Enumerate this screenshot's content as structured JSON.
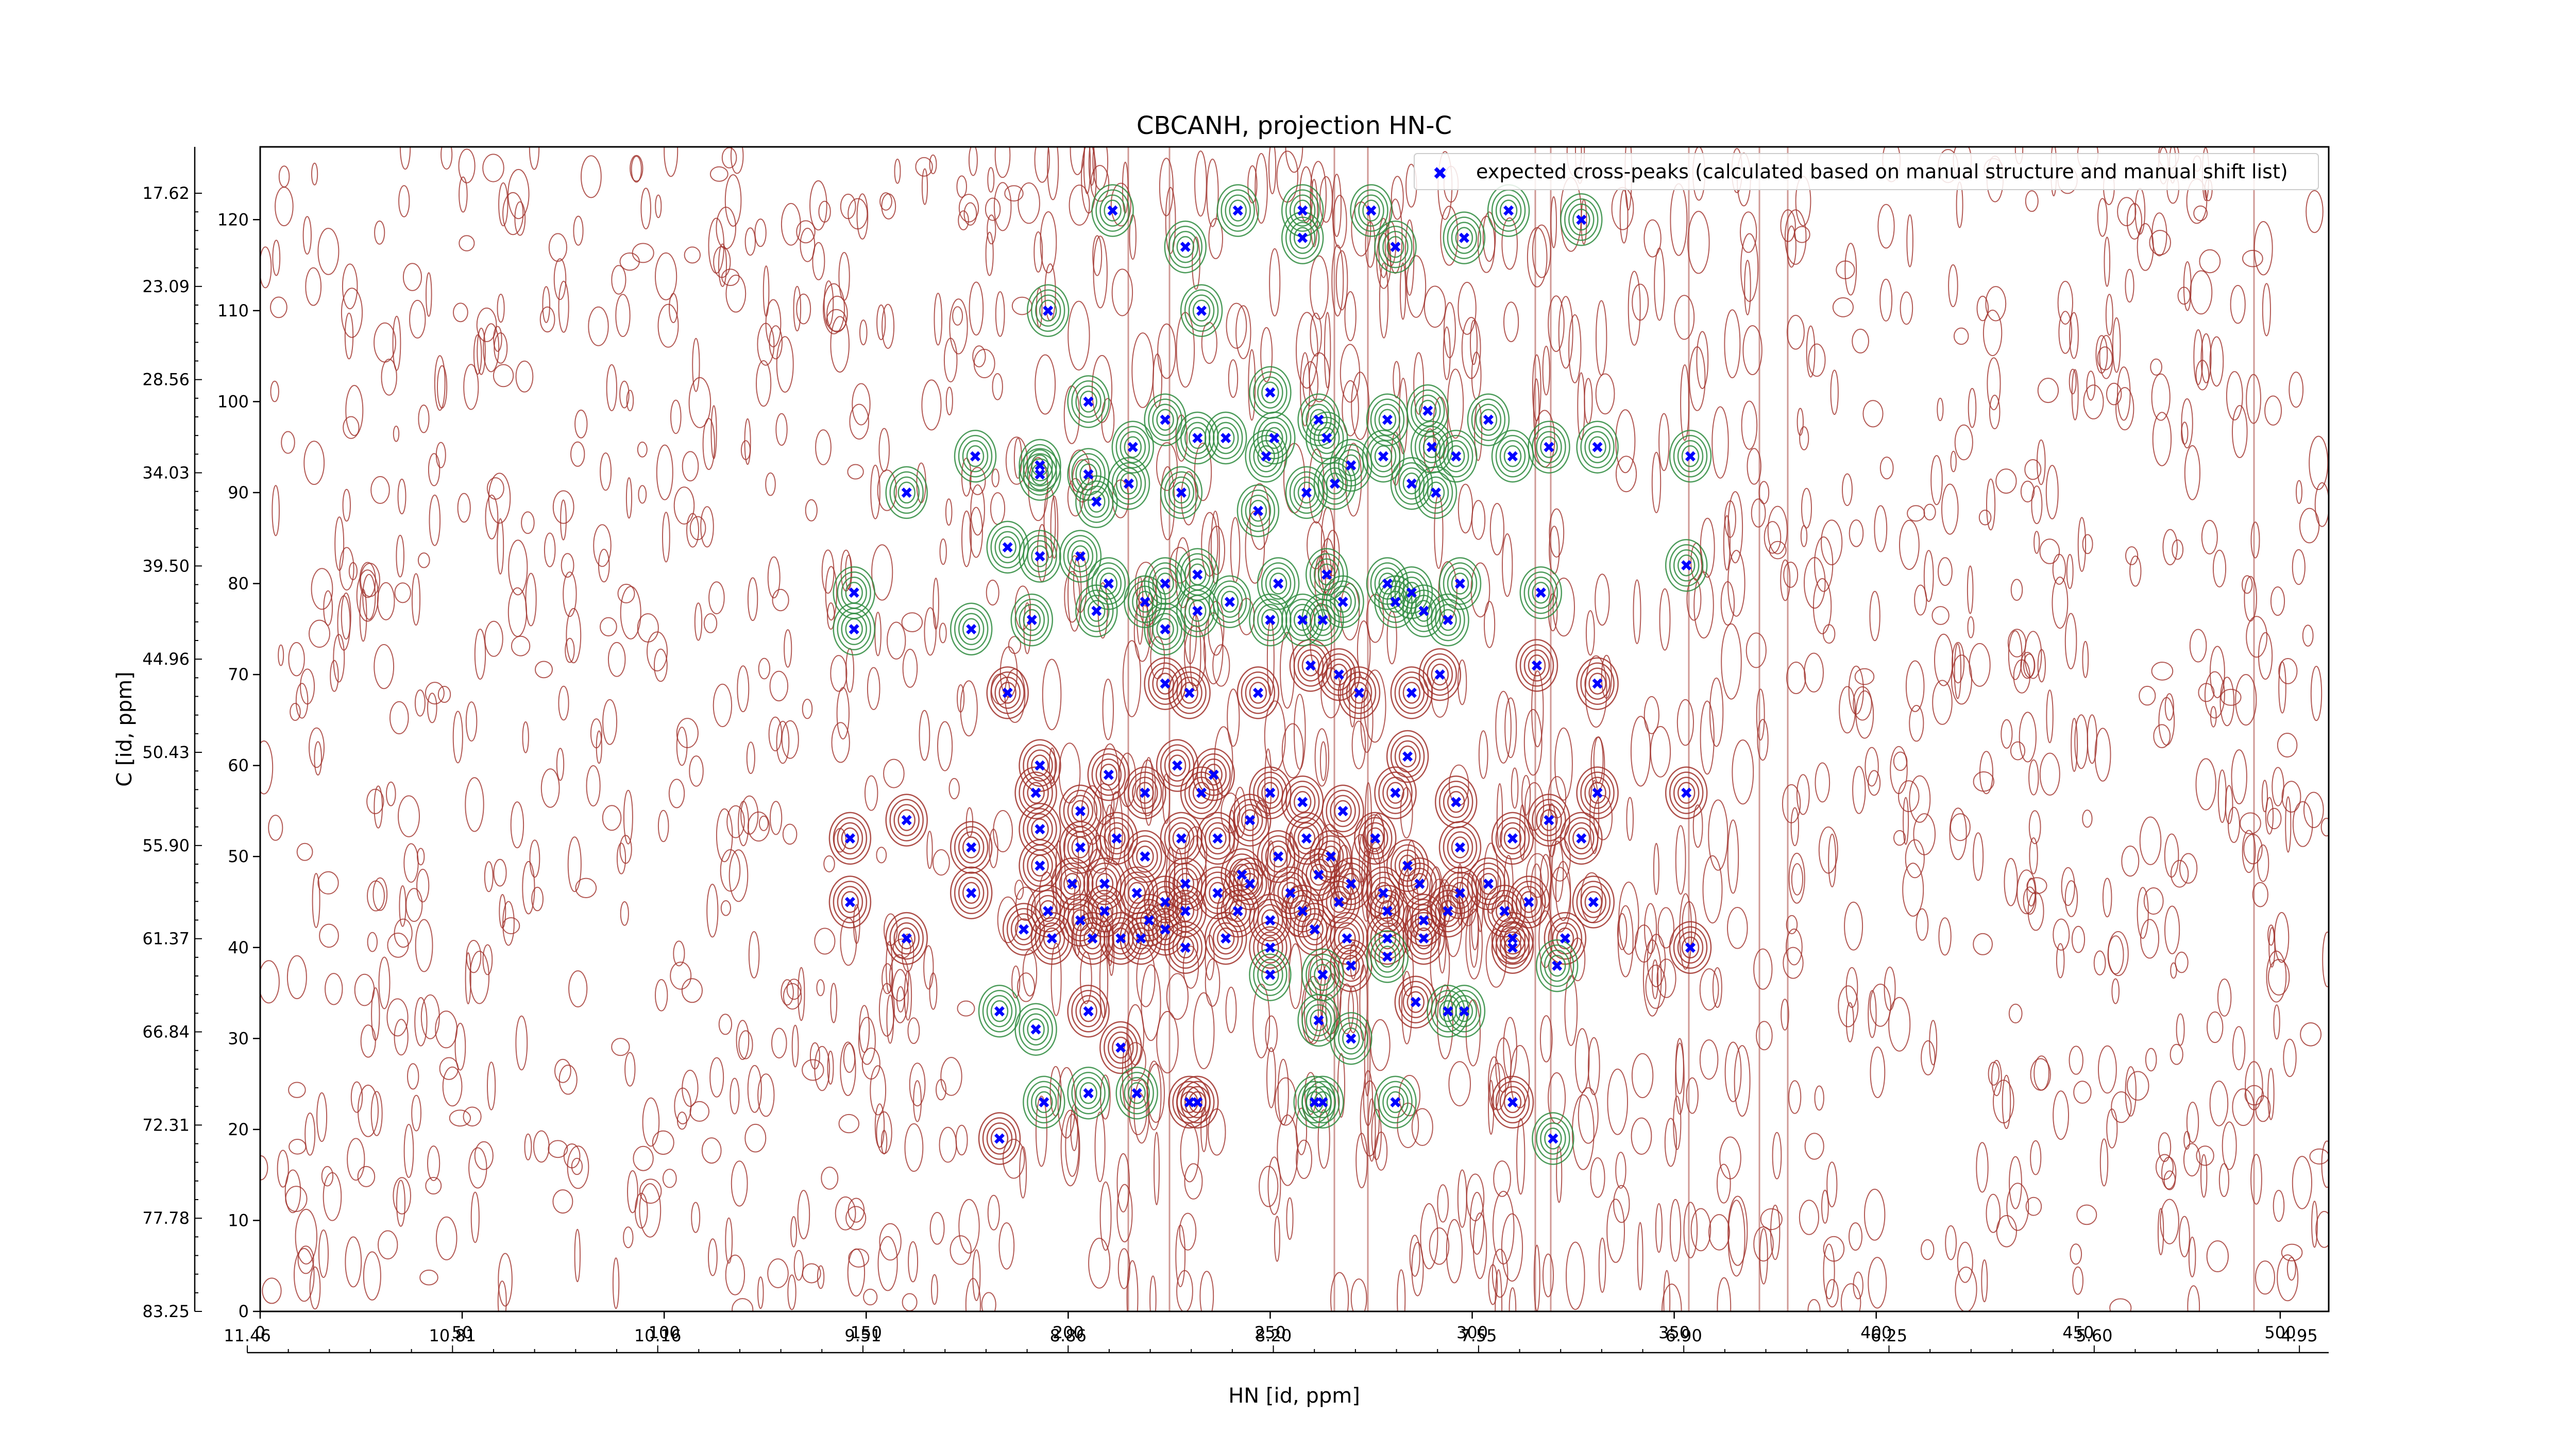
{
  "chart_data": {
    "type": "scatter",
    "title": "CBCANH, projection HN-C",
    "xlabel": "HN [id, ppm]",
    "ylabel": "C [id, ppm]",
    "xlim": [
      0,
      512
    ],
    "ylim": [
      0,
      128
    ],
    "x_ticks": [
      0,
      50,
      100,
      150,
      200,
      250,
      300,
      350,
      400,
      450,
      500
    ],
    "y_ticks": [
      0,
      10,
      20,
      30,
      40,
      50,
      60,
      70,
      80,
      90,
      100,
      110,
      120
    ],
    "x_ppm_ticks": [
      "11.46",
      "10.81",
      "10.16",
      "9.51",
      "8.86",
      "8.20",
      "7.55",
      "6.90",
      "6.25",
      "5.60",
      "4.95"
    ],
    "y_ppm_ticks": [
      "83.25",
      "77.78",
      "72.31",
      "66.84",
      "61.37",
      "55.90",
      "50.43",
      "44.96",
      "39.50",
      "34.03",
      "28.56",
      "23.09",
      "17.62"
    ],
    "legend": {
      "position": "top-right",
      "label": "expected cross-peaks (calculated based on manual structure and manual shift list)"
    },
    "colors": {
      "marker": "#0000ff",
      "positive_contour": "#a0312a",
      "negative_contour": "#2e8b3e",
      "axis": "#000000"
    },
    "series": [
      {
        "name": "expected cross-peaks (calculated based on manual structure and manual shift list)",
        "marker": "x",
        "points": [
          [
            211,
            121
          ],
          [
            229,
            117
          ],
          [
            242,
            121
          ],
          [
            258,
            121
          ],
          [
            258,
            118
          ],
          [
            275,
            121
          ],
          [
            281,
            117
          ],
          [
            298,
            118
          ],
          [
            309,
            121
          ],
          [
            327,
            120
          ],
          [
            195,
            110
          ],
          [
            233,
            110
          ],
          [
            205,
            100
          ],
          [
            224,
            98
          ],
          [
            250,
            101
          ],
          [
            262,
            98
          ],
          [
            279,
            98
          ],
          [
            289,
            99
          ],
          [
            304,
            98
          ],
          [
            177,
            94
          ],
          [
            193,
            93
          ],
          [
            216,
            95
          ],
          [
            232,
            96
          ],
          [
            239,
            96
          ],
          [
            249,
            94
          ],
          [
            251,
            96
          ],
          [
            264,
            96
          ],
          [
            270,
            93
          ],
          [
            278,
            94
          ],
          [
            290,
            95
          ],
          [
            296,
            94
          ],
          [
            310,
            94
          ],
          [
            319,
            95
          ],
          [
            331,
            95
          ],
          [
            354,
            94
          ],
          [
            160,
            90
          ],
          [
            193,
            92
          ],
          [
            205,
            92
          ],
          [
            207,
            89
          ],
          [
            215,
            91
          ],
          [
            228,
            90
          ],
          [
            247,
            88
          ],
          [
            259,
            90
          ],
          [
            266,
            91
          ],
          [
            285,
            91
          ],
          [
            291,
            90
          ],
          [
            193,
            83
          ],
          [
            203,
            83
          ],
          [
            210,
            80
          ],
          [
            224,
            80
          ],
          [
            232,
            81
          ],
          [
            252,
            80
          ],
          [
            264,
            81
          ],
          [
            279,
            80
          ],
          [
            285,
            79
          ],
          [
            297,
            80
          ],
          [
            317,
            79
          ],
          [
            147,
            79
          ],
          [
            147,
            75
          ],
          [
            176,
            75
          ],
          [
            191,
            76
          ],
          [
            207,
            77
          ],
          [
            219,
            78
          ],
          [
            224,
            75
          ],
          [
            232,
            77
          ],
          [
            240,
            78
          ],
          [
            250,
            76
          ],
          [
            258,
            76
          ],
          [
            263,
            76
          ],
          [
            268,
            78
          ],
          [
            281,
            78
          ],
          [
            288,
            77
          ],
          [
            294,
            76
          ],
          [
            353,
            82
          ],
          [
            185,
            84
          ],
          [
            185,
            68
          ],
          [
            224,
            69
          ],
          [
            230,
            68
          ],
          [
            247,
            68
          ],
          [
            260,
            71
          ],
          [
            267,
            70
          ],
          [
            272,
            68
          ],
          [
            285,
            68
          ],
          [
            292,
            70
          ],
          [
            316,
            71
          ],
          [
            331,
            69
          ],
          [
            193,
            60
          ],
          [
            192,
            57
          ],
          [
            203,
            55
          ],
          [
            210,
            59
          ],
          [
            219,
            57
          ],
          [
            227,
            60
          ],
          [
            233,
            57
          ],
          [
            236,
            59
          ],
          [
            245,
            54
          ],
          [
            250,
            57
          ],
          [
            258,
            56
          ],
          [
            268,
            55
          ],
          [
            281,
            57
          ],
          [
            284,
            61
          ],
          [
            296,
            56
          ],
          [
            319,
            54
          ],
          [
            331,
            57
          ],
          [
            353,
            57
          ],
          [
            160,
            54
          ],
          [
            193,
            53
          ],
          [
            203,
            51
          ],
          [
            212,
            52
          ],
          [
            219,
            50
          ],
          [
            228,
            52
          ],
          [
            237,
            52
          ],
          [
            243,
            48
          ],
          [
            252,
            50
          ],
          [
            259,
            52
          ],
          [
            265,
            50
          ],
          [
            276,
            52
          ],
          [
            284,
            49
          ],
          [
            297,
            51
          ],
          [
            310,
            52
          ],
          [
            327,
            52
          ],
          [
            146,
            52
          ],
          [
            176,
            51
          ],
          [
            193,
            49
          ],
          [
            201,
            47
          ],
          [
            209,
            47
          ],
          [
            217,
            46
          ],
          [
            224,
            45
          ],
          [
            229,
            47
          ],
          [
            237,
            46
          ],
          [
            245,
            47
          ],
          [
            255,
            46
          ],
          [
            262,
            48
          ],
          [
            270,
            47
          ],
          [
            278,
            46
          ],
          [
            287,
            47
          ],
          [
            297,
            46
          ],
          [
            304,
            47
          ],
          [
            314,
            45
          ],
          [
            330,
            45
          ],
          [
            146,
            45
          ],
          [
            176,
            46
          ],
          [
            195,
            44
          ],
          [
            203,
            43
          ],
          [
            209,
            44
          ],
          [
            220,
            43
          ],
          [
            229,
            44
          ],
          [
            242,
            44
          ],
          [
            250,
            43
          ],
          [
            258,
            44
          ],
          [
            267,
            45
          ],
          [
            279,
            44
          ],
          [
            288,
            43
          ],
          [
            294,
            44
          ],
          [
            308,
            44
          ],
          [
            160,
            41
          ],
          [
            189,
            42
          ],
          [
            196,
            41
          ],
          [
            206,
            41
          ],
          [
            213,
            41
          ],
          [
            218,
            41
          ],
          [
            224,
            42
          ],
          [
            229,
            40
          ],
          [
            239,
            41
          ],
          [
            250,
            40
          ],
          [
            261,
            42
          ],
          [
            269,
            41
          ],
          [
            279,
            41
          ],
          [
            288,
            41
          ],
          [
            310,
            41
          ],
          [
            323,
            41
          ],
          [
            183,
            33
          ],
          [
            192,
            31
          ],
          [
            205,
            33
          ],
          [
            213,
            29
          ],
          [
            250,
            37
          ],
          [
            263,
            37
          ],
          [
            270,
            38
          ],
          [
            279,
            39
          ],
          [
            286,
            34
          ],
          [
            294,
            33
          ],
          [
            310,
            40
          ],
          [
            321,
            38
          ],
          [
            354,
            40
          ],
          [
            262,
            32
          ],
          [
            270,
            30
          ],
          [
            298,
            33
          ],
          [
            194,
            23
          ],
          [
            205,
            24
          ],
          [
            217,
            24
          ],
          [
            230,
            23
          ],
          [
            232,
            23
          ],
          [
            261,
            23
          ],
          [
            263,
            23
          ],
          [
            281,
            23
          ],
          [
            310,
            23
          ],
          [
            320,
            19
          ],
          [
            183,
            19
          ]
        ]
      }
    ]
  }
}
